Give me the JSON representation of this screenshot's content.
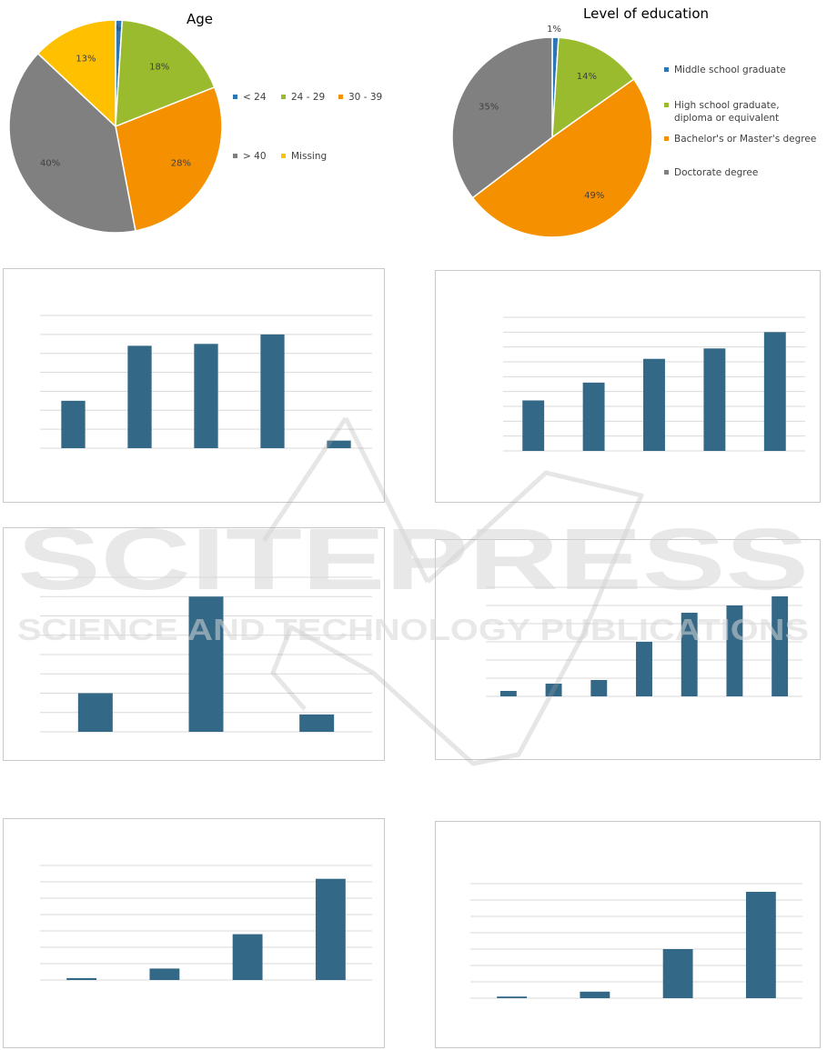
{
  "colors": {
    "bar": "#336887",
    "grid": "#d9d9d9",
    "panel_border": "#c8c8c8",
    "blue": "#2e75b6",
    "green": "#9bbb2e",
    "orange": "#f59100",
    "gray": "#808080",
    "yellow": "#ffc000"
  },
  "age_chart": {
    "title": "Age",
    "chart_data": {
      "type": "pie",
      "title": "Age",
      "slices": [
        {
          "label": "< 24",
          "value": 1,
          "pct_label": "1%",
          "color": "#2e75b6"
        },
        {
          "label": "24 - 29",
          "value": 18,
          "pct_label": "18%",
          "color": "#9bbb2e"
        },
        {
          "label": "30 - 39",
          "value": 28,
          "pct_label": "28%",
          "color": "#f59100"
        },
        {
          "label": "> 40",
          "value": 40,
          "pct_label": "40%",
          "color": "#808080"
        },
        {
          "label": "Missing",
          "value": 13,
          "pct_label": "13%",
          "color": "#ffc000"
        }
      ],
      "legend_position": "right"
    }
  },
  "education_chart": {
    "title": "Level of education",
    "chart_data": {
      "type": "pie",
      "title": "Level of education",
      "slices": [
        {
          "label": "Middle school graduate",
          "value": 1,
          "pct_label": "1%",
          "color": "#2e75b6"
        },
        {
          "label": "High school graduate, diploma or equivalent",
          "value": 14,
          "pct_label": "14%",
          "color": "#9bbb2e"
        },
        {
          "label": "Bachelor's or Master's degree",
          "value": 49,
          "pct_label": "49%",
          "color": "#f59100"
        },
        {
          "label": "Doctorate degree",
          "value": 35,
          "pct_label": "35%",
          "color": "#808080"
        }
      ],
      "legend_position": "right"
    }
  },
  "bar_charts": [
    {
      "type": "bar",
      "values": [
        25,
        54,
        55,
        60,
        4
      ],
      "ylim": [
        0,
        70
      ],
      "gridlines": 7,
      "grid": true
    },
    {
      "type": "bar",
      "values": [
        34,
        46,
        62,
        69,
        80
      ],
      "ylim": [
        0,
        90
      ],
      "gridlines": 9,
      "grid": true
    },
    {
      "type": "bar",
      "values": [
        20,
        70,
        9
      ],
      "ylim": [
        0,
        80
      ],
      "gridlines": 8,
      "grid": true
    },
    {
      "type": "bar",
      "values": [
        3,
        7,
        9,
        30,
        46,
        50,
        55
      ],
      "ylim": [
        0,
        60
      ],
      "gridlines": 6,
      "grid": true
    },
    {
      "type": "bar",
      "values": [
        1,
        6,
        24,
        53
      ],
      "ylim": [
        0,
        60
      ],
      "gridlines": 7,
      "grid": true
    },
    {
      "type": "bar",
      "values": [
        1,
        4,
        30,
        65
      ],
      "ylim": [
        0,
        70
      ],
      "gridlines": 7,
      "grid": true
    }
  ],
  "watermark": {
    "line1": "SCITEPRESS",
    "line2": "SCIENCE AND TECHNOLOGY PUBLICATIONS"
  }
}
